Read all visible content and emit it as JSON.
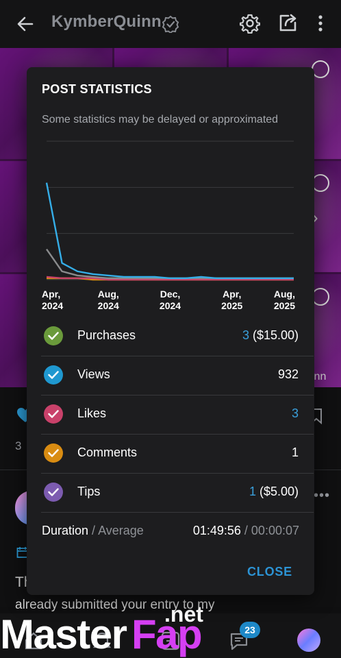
{
  "header": {
    "title": "KymberQuinn",
    "icons": [
      "back-arrow-icon",
      "verified-icon",
      "gear-icon",
      "share-icon",
      "more-vertical-icon"
    ]
  },
  "background": {
    "count": "3",
    "partial_name": "inn",
    "post_text_line1": "Th",
    "post_text_line2": "already submitted your entry to my"
  },
  "bottom_nav": {
    "messages_badge": "23"
  },
  "watermark": {
    "part1": "Master",
    "part2": "Fap",
    "part3": ".net"
  },
  "modal": {
    "title": "POST STATISTICS",
    "subtitle": "Some statistics may be delayed or approximated",
    "rows": [
      {
        "label": "Purchases",
        "value_primary": "3",
        "value_secondary": " ($15.00)",
        "color": "#6a9a3b",
        "primary_link": true
      },
      {
        "label": "Views",
        "value_primary": "932",
        "value_secondary": "",
        "color": "#1f98d0",
        "primary_link": false
      },
      {
        "label": "Likes",
        "value_primary": "3",
        "value_secondary": "",
        "color": "#c9416a",
        "primary_link": true
      },
      {
        "label": "Comments",
        "value_primary": "1",
        "value_secondary": "",
        "color": "#d98c12",
        "primary_link": false
      },
      {
        "label": "Tips",
        "value_primary": "1",
        "value_secondary": " ($5.00)",
        "color": "#7c5bb0",
        "primary_link": true
      }
    ],
    "duration": {
      "label": "Duration",
      "separator": " / ",
      "sub_label": "Average",
      "total": "01:49:56",
      "average": "00:00:07"
    },
    "close_label": "CLOSE"
  },
  "chart_data": {
    "type": "line",
    "x_tick_labels": [
      [
        "Apr,",
        "2024"
      ],
      [
        "Aug,",
        "2024"
      ],
      [
        "Dec,",
        "2024"
      ],
      [
        "Apr,",
        "2025"
      ],
      [
        "Aug,",
        "2025"
      ]
    ],
    "x_tick_positions": [
      0,
      4,
      8,
      12,
      16
    ],
    "ylim": [
      0,
      100
    ],
    "grid": true,
    "series": [
      {
        "color": "#35aee8",
        "values": [
          70,
          12,
          6,
          4,
          3,
          2,
          2,
          2,
          1,
          1,
          2,
          1,
          1,
          1,
          1,
          1,
          1
        ]
      },
      {
        "color": "#8a8b8d",
        "values": [
          22,
          6,
          3,
          2,
          1,
          1,
          1,
          1,
          1,
          1,
          1,
          1,
          1,
          1,
          1,
          1,
          1
        ]
      },
      {
        "color": "#c9416a",
        "values": [
          2,
          1,
          1,
          1,
          0,
          0,
          0,
          0,
          0,
          0,
          0,
          0,
          0,
          0,
          0,
          0,
          0
        ]
      },
      {
        "color": "#d98c12",
        "values": [
          1,
          1,
          1,
          0,
          0,
          0,
          0,
          0,
          0,
          0,
          0,
          0,
          0,
          0,
          0,
          0,
          0
        ]
      },
      {
        "color": "#6a9a3b",
        "values": [
          1,
          1,
          1,
          1,
          1,
          1,
          1,
          1,
          1,
          1,
          1,
          1,
          1,
          1,
          1,
          1,
          1
        ]
      }
    ]
  }
}
